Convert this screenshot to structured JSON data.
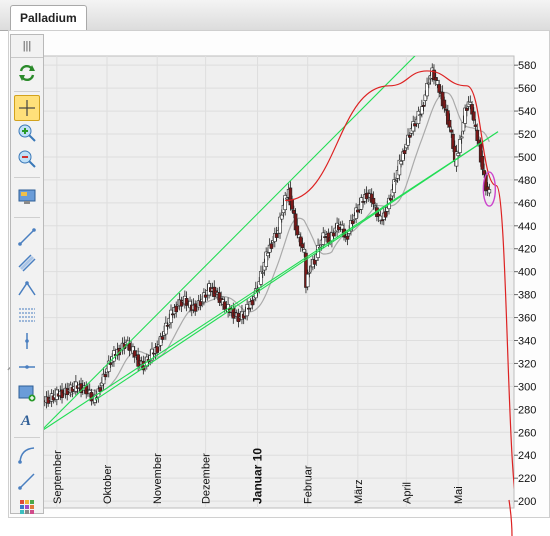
{
  "tab": {
    "label": "Palladium"
  },
  "toolbar": {
    "grip": "|||",
    "tools": [
      {
        "name": "refresh-icon"
      },
      {
        "name": "crosshair-icon",
        "active": true
      },
      {
        "name": "zoom-in-icon"
      },
      {
        "name": "zoom-out-icon"
      },
      {
        "name": "monitor-icon"
      },
      {
        "name": "trendline-icon"
      },
      {
        "name": "channel-icon"
      },
      {
        "name": "angle-icon"
      },
      {
        "name": "fibonacci-icon"
      },
      {
        "name": "vertical-line-icon"
      },
      {
        "name": "horizontal-line-icon"
      },
      {
        "name": "rectangle-icon"
      },
      {
        "name": "text-icon"
      },
      {
        "name": "arc-icon"
      },
      {
        "name": "ray-icon"
      },
      {
        "name": "color-palette-icon"
      }
    ]
  },
  "chart_data": {
    "type": "candlestick",
    "instrument": "Palladium",
    "x_ticks": [
      "September",
      "Oktober",
      "November",
      "Dezember",
      "Januar 10",
      "Februar",
      "März",
      "April",
      "Mai"
    ],
    "bold_tick": "Januar 10",
    "y_ticks": [
      200,
      220,
      240,
      260,
      280,
      300,
      320,
      340,
      360,
      380,
      400,
      420,
      440,
      460,
      480,
      500,
      520,
      540,
      560,
      580
    ],
    "ylim": [
      194,
      588
    ],
    "grid": true,
    "colors": {
      "up": "#ffffff",
      "down": "#7a1818",
      "trend": "#22dd55",
      "curve": "#dd2222",
      "ma": "#aaaaaa",
      "highlight": "#cc44cc",
      "plot_bg": "#efefef"
    },
    "price_path": [
      [
        0,
        287
      ],
      [
        5,
        290
      ],
      [
        10,
        294
      ],
      [
        15,
        297
      ],
      [
        20,
        300
      ],
      [
        24,
        298
      ],
      [
        26,
        296
      ],
      [
        28,
        290
      ],
      [
        30,
        288
      ],
      [
        33,
        300
      ],
      [
        36,
        312
      ],
      [
        40,
        325
      ],
      [
        44,
        332
      ],
      [
        48,
        338
      ],
      [
        52,
        330
      ],
      [
        55,
        322
      ],
      [
        58,
        318
      ],
      [
        62,
        326
      ],
      [
        66,
        334
      ],
      [
        70,
        348
      ],
      [
        74,
        362
      ],
      [
        78,
        372
      ],
      [
        82,
        375
      ],
      [
        86,
        368
      ],
      [
        90,
        372
      ],
      [
        93,
        378
      ],
      [
        96,
        385
      ],
      [
        100,
        382
      ],
      [
        103,
        374
      ],
      [
        106,
        368
      ],
      [
        110,
        364
      ],
      [
        113,
        360
      ],
      [
        116,
        362
      ],
      [
        120,
        372
      ],
      [
        124,
        386
      ],
      [
        127,
        402
      ],
      [
        130,
        418
      ],
      [
        133,
        428
      ],
      [
        136,
        436
      ],
      [
        138,
        452
      ],
      [
        140,
        462
      ],
      [
        142,
        470
      ],
      [
        145,
        448
      ],
      [
        147,
        432
      ],
      [
        149,
        425
      ],
      [
        151,
        415
      ],
      [
        152,
        388
      ],
      [
        154,
        404
      ],
      [
        157,
        410
      ],
      [
        160,
        424
      ],
      [
        163,
        432
      ],
      [
        166,
        428
      ],
      [
        169,
        438
      ],
      [
        172,
        440
      ],
      [
        175,
        428
      ],
      [
        178,
        442
      ],
      [
        181,
        452
      ],
      [
        184,
        460
      ],
      [
        187,
        468
      ],
      [
        190,
        464
      ],
      [
        192,
        454
      ],
      [
        195,
        444
      ],
      [
        198,
        452
      ],
      [
        201,
        466
      ],
      [
        204,
        482
      ],
      [
        207,
        498
      ],
      [
        210,
        512
      ],
      [
        213,
        525
      ],
      [
        216,
        532
      ],
      [
        219,
        542
      ],
      [
        221,
        555
      ],
      [
        223,
        568
      ],
      [
        225,
        574
      ],
      [
        227,
        566
      ],
      [
        229,
        558
      ],
      [
        231,
        549
      ],
      [
        233,
        538
      ],
      [
        235,
        526
      ],
      [
        237,
        510
      ],
      [
        238,
        495
      ],
      [
        240,
        505
      ],
      [
        242,
        522
      ],
      [
        244,
        540
      ],
      [
        246,
        548
      ],
      [
        248,
        540
      ],
      [
        250,
        522
      ],
      [
        252,
        510
      ],
      [
        254,
        490
      ],
      [
        256,
        474
      ],
      [
        258,
        468
      ]
    ],
    "annotations": [
      {
        "type": "trendline",
        "from": [
          0,
          263
        ],
        "to": [
          248,
          638
        ]
      },
      {
        "type": "trendline",
        "from": [
          0,
          262
        ],
        "to": [
          263,
          522
        ]
      },
      {
        "type": "trendline",
        "from": [
          30,
          288
        ],
        "to": [
          263,
          522
        ]
      },
      {
        "type": "arc",
        "points": [
          [
            140,
            462
          ],
          [
            200,
            562
          ],
          [
            222,
            575
          ],
          [
            245,
            562
          ],
          [
            262,
            475
          ],
          [
            275,
            195
          ]
        ]
      },
      {
        "type": "ellipse",
        "center": [
          258,
          472
        ]
      }
    ]
  }
}
